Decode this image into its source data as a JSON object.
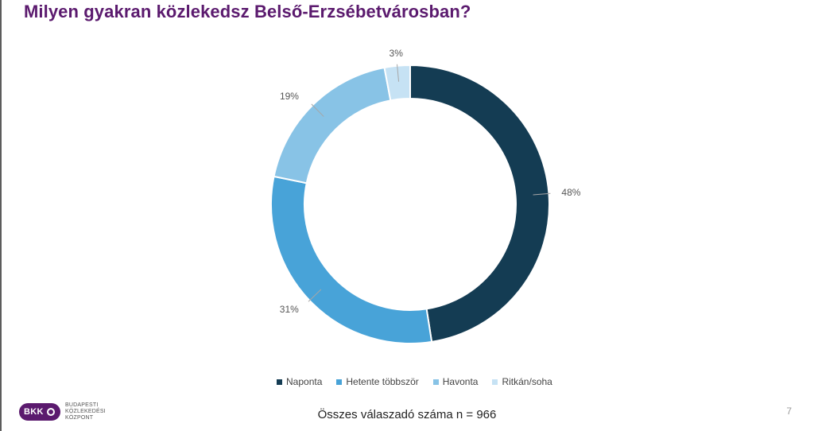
{
  "title": "Milyen gyakran közlekedsz Belső-Erzsébetvárosban?",
  "chart_data": {
    "type": "pie",
    "donut": true,
    "title": "Milyen gyakran közlekedsz Belső-Erzsébetvárosban?",
    "categories": [
      "Naponta",
      "Hetente többször",
      "Havonta",
      "Ritkán/soha"
    ],
    "values": [
      48,
      31,
      19,
      3
    ],
    "labels": [
      "48%",
      "31%",
      "19%",
      "3%"
    ],
    "colors": [
      "#143c53",
      "#48a3d8",
      "#88c3e6",
      "#c6e2f4"
    ],
    "legend_position": "bottom"
  },
  "legend": {
    "items": [
      {
        "label": "Naponta",
        "color": "#143c53"
      },
      {
        "label": "Hetente többször",
        "color": "#48a3d8"
      },
      {
        "label": "Havonta",
        "color": "#88c3e6"
      },
      {
        "label": "Ritkán/soha",
        "color": "#c6e2f4"
      }
    ]
  },
  "footer": {
    "respondents": "Összes válaszadó száma n = 966",
    "page_number": "7"
  },
  "logo": {
    "badge_text": "BKK",
    "lines": [
      "BUDAPESTI",
      "KÖZLEKEDÉSI",
      "KÖZPONT"
    ],
    "color": "#5b1a6e"
  }
}
